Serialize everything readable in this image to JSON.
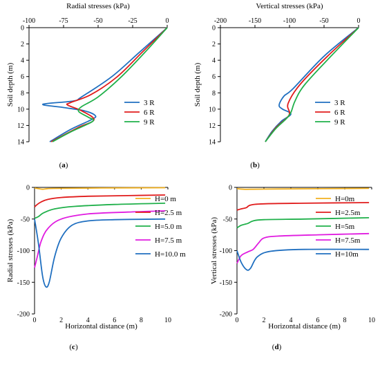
{
  "chart_data": [
    {
      "id": "a",
      "type": "line",
      "panel_label": "a",
      "xlabel": "Radial stresses (kPa)",
      "ylabel": "Soil depth (m)",
      "x_axis_position": "top",
      "y_inverted": true,
      "xlim": [
        -100,
        0
      ],
      "ylim": [
        0,
        14
      ],
      "xticks": [
        -100,
        -75,
        -50,
        -25,
        0
      ],
      "yticks": [
        0,
        2,
        4,
        6,
        8,
        10,
        12,
        14
      ],
      "legend_position": "middle-right",
      "series": [
        {
          "name": "3 R",
          "color": "#1f6fc0",
          "points": [
            [
              0,
              0
            ],
            [
              -20,
              3
            ],
            [
              -40,
              6
            ],
            [
              -62,
              8.5
            ],
            [
              -68,
              9
            ],
            [
              -90,
              9.4
            ],
            [
              -75,
              9.8
            ],
            [
              -60,
              10.2
            ],
            [
              -52,
              10.8
            ],
            [
              -55,
              11.3
            ],
            [
              -70,
              12.5
            ],
            [
              -85,
              14
            ]
          ]
        },
        {
          "name": "6 R",
          "color": "#e01b1b",
          "points": [
            [
              0,
              0
            ],
            [
              -18,
              3
            ],
            [
              -36,
              6
            ],
            [
              -55,
              8.2
            ],
            [
              -70,
              9.2
            ],
            [
              -72,
              9.5
            ],
            [
              -62,
              10.2
            ],
            [
              -53,
              11.3
            ],
            [
              -65,
              12.3
            ],
            [
              -84,
              14
            ]
          ]
        },
        {
          "name": "9 R",
          "color": "#1fb04a",
          "points": [
            [
              0,
              0
            ],
            [
              -16,
              3
            ],
            [
              -33,
              6
            ],
            [
              -50,
              8.5
            ],
            [
              -62,
              9.7
            ],
            [
              -64,
              10.3
            ],
            [
              -57,
              11
            ],
            [
              -54,
              11.5
            ],
            [
              -70,
              12.8
            ],
            [
              -83,
              14
            ]
          ]
        }
      ]
    },
    {
      "id": "b",
      "type": "line",
      "panel_label": "b",
      "xlabel": "Vertical stresses (kPa)",
      "ylabel": "Soil depth (m)",
      "x_axis_position": "top",
      "y_inverted": true,
      "xlim": [
        -200,
        0
      ],
      "ylim": [
        0,
        14
      ],
      "xticks": [
        -200,
        -150,
        -100,
        -50,
        0
      ],
      "yticks": [
        0,
        2,
        4,
        6,
        8,
        10,
        12,
        14
      ],
      "legend_position": "middle-right",
      "series": [
        {
          "name": "3 R",
          "color": "#1f6fc0",
          "points": [
            [
              0,
              0
            ],
            [
              -50,
              3.5
            ],
            [
              -95,
              7.5
            ],
            [
              -108,
              8.4
            ],
            [
              -115,
              9.5
            ],
            [
              -110,
              10
            ],
            [
              -98,
              10.6
            ],
            [
              -112,
              11.5
            ],
            [
              -125,
              12.7
            ],
            [
              -135,
              14
            ]
          ]
        },
        {
          "name": "6 R",
          "color": "#e01b1b",
          "points": [
            [
              0,
              0
            ],
            [
              -45,
              3.5
            ],
            [
              -85,
              7
            ],
            [
              -102,
              9.3
            ],
            [
              -100,
              10.4
            ],
            [
              -103,
              11
            ],
            [
              -120,
              12.3
            ],
            [
              -135,
              14
            ]
          ]
        },
        {
          "name": "9 R",
          "color": "#1fb04a",
          "points": [
            [
              0,
              0
            ],
            [
              -40,
              3.5
            ],
            [
              -78,
              7
            ],
            [
              -92,
              9
            ],
            [
              -98,
              10.4
            ],
            [
              -105,
              11.2
            ],
            [
              -120,
              12.4
            ],
            [
              -135,
              14
            ]
          ]
        }
      ]
    },
    {
      "id": "c",
      "type": "line",
      "panel_label": "c",
      "xlabel": "Horizontal distance (m)",
      "ylabel": "Radial stresses (kPa)",
      "xlim": [
        0,
        10
      ],
      "ylim": [
        -200,
        0
      ],
      "xticks": [
        0,
        2,
        4,
        6,
        8,
        10
      ],
      "yticks": [
        0,
        -50,
        -100,
        -150,
        -200
      ],
      "legend_position": "right",
      "series": [
        {
          "name": "H=0 m",
          "color": "#f2b01e",
          "points": [
            [
              0,
              -1
            ],
            [
              0.3,
              -2
            ],
            [
              0.6,
              -3
            ],
            [
              1,
              -2
            ],
            [
              2,
              -1.5
            ],
            [
              5,
              -1
            ],
            [
              9.8,
              -0.5
            ]
          ]
        },
        {
          "name": "H=2.5 m",
          "color": "#e01b1b",
          "points": [
            [
              0,
              -31
            ],
            [
              0.2,
              -27
            ],
            [
              0.5,
              -23
            ],
            [
              1,
              -19
            ],
            [
              2,
              -16
            ],
            [
              4,
              -14
            ],
            [
              7,
              -13
            ],
            [
              9.8,
              -12
            ]
          ]
        },
        {
          "name": "H=5.0 m",
          "color": "#1fb04a",
          "points": [
            [
              0,
              -49
            ],
            [
              0.3,
              -46
            ],
            [
              0.7,
              -40
            ],
            [
              1.5,
              -34
            ],
            [
              3,
              -30
            ],
            [
              6,
              -27
            ],
            [
              9.8,
              -25
            ]
          ]
        },
        {
          "name": "H=7.5 m",
          "color": "#e01be0",
          "points": [
            [
              0,
              -127
            ],
            [
              0.2,
              -110
            ],
            [
              0.5,
              -85
            ],
            [
              1,
              -65
            ],
            [
              2,
              -50
            ],
            [
              4,
              -42
            ],
            [
              7,
              -39
            ],
            [
              9.8,
              -37
            ]
          ]
        },
        {
          "name": "H=10.0 m",
          "color": "#1f6fc0",
          "points": [
            [
              0,
              -50
            ],
            [
              0.3,
              -90
            ],
            [
              0.6,
              -140
            ],
            [
              0.85,
              -157
            ],
            [
              1.1,
              -150
            ],
            [
              1.5,
              -110
            ],
            [
              2,
              -80
            ],
            [
              2.8,
              -60
            ],
            [
              4,
              -53
            ],
            [
              6,
              -51
            ],
            [
              9.8,
              -50
            ]
          ]
        }
      ]
    },
    {
      "id": "d",
      "type": "line",
      "panel_label": "d",
      "xlabel": "Horizontal distance (m)",
      "ylabel": "Vertical stresses (kPa)",
      "xlim": [
        0,
        10
      ],
      "ylim": [
        -200,
        0
      ],
      "xticks": [
        0,
        2,
        4,
        6,
        8,
        10
      ],
      "yticks": [
        0,
        -50,
        -100,
        -150,
        -200
      ],
      "legend_position": "right",
      "series": [
        {
          "name": "H=0m",
          "color": "#f2b01e",
          "points": [
            [
              0,
              -2
            ],
            [
              0.5,
              -3
            ],
            [
              1,
              -3
            ],
            [
              3,
              -2.5
            ],
            [
              9.8,
              -1.5
            ]
          ]
        },
        {
          "name": "H=2.5m",
          "color": "#e01b1b",
          "points": [
            [
              0,
              -36
            ],
            [
              0.3,
              -34
            ],
            [
              0.7,
              -32
            ],
            [
              1,
              -28
            ],
            [
              2,
              -26
            ],
            [
              5,
              -25
            ],
            [
              9.8,
              -24
            ]
          ]
        },
        {
          "name": "H=5m",
          "color": "#1fb04a",
          "points": [
            [
              0,
              -64
            ],
            [
              0.3,
              -60
            ],
            [
              0.8,
              -57
            ],
            [
              1.2,
              -53
            ],
            [
              2,
              -51
            ],
            [
              5,
              -50
            ],
            [
              9.8,
              -48
            ]
          ]
        },
        {
          "name": "H=7.5m",
          "color": "#e01be0",
          "points": [
            [
              0,
              -120
            ],
            [
              0.3,
              -108
            ],
            [
              0.8,
              -102
            ],
            [
              1.2,
              -98
            ],
            [
              1.6,
              -88
            ],
            [
              2,
              -80
            ],
            [
              3,
              -77
            ],
            [
              6,
              -75
            ],
            [
              9.8,
              -73
            ]
          ]
        },
        {
          "name": "H=10m",
          "color": "#1f6fc0",
          "points": [
            [
              0,
              -100
            ],
            [
              0.3,
              -118
            ],
            [
              0.7,
              -130
            ],
            [
              1,
              -128
            ],
            [
              1.5,
              -110
            ],
            [
              2.5,
              -101
            ],
            [
              5,
              -98
            ],
            [
              9.8,
              -98
            ]
          ]
        }
      ]
    }
  ]
}
